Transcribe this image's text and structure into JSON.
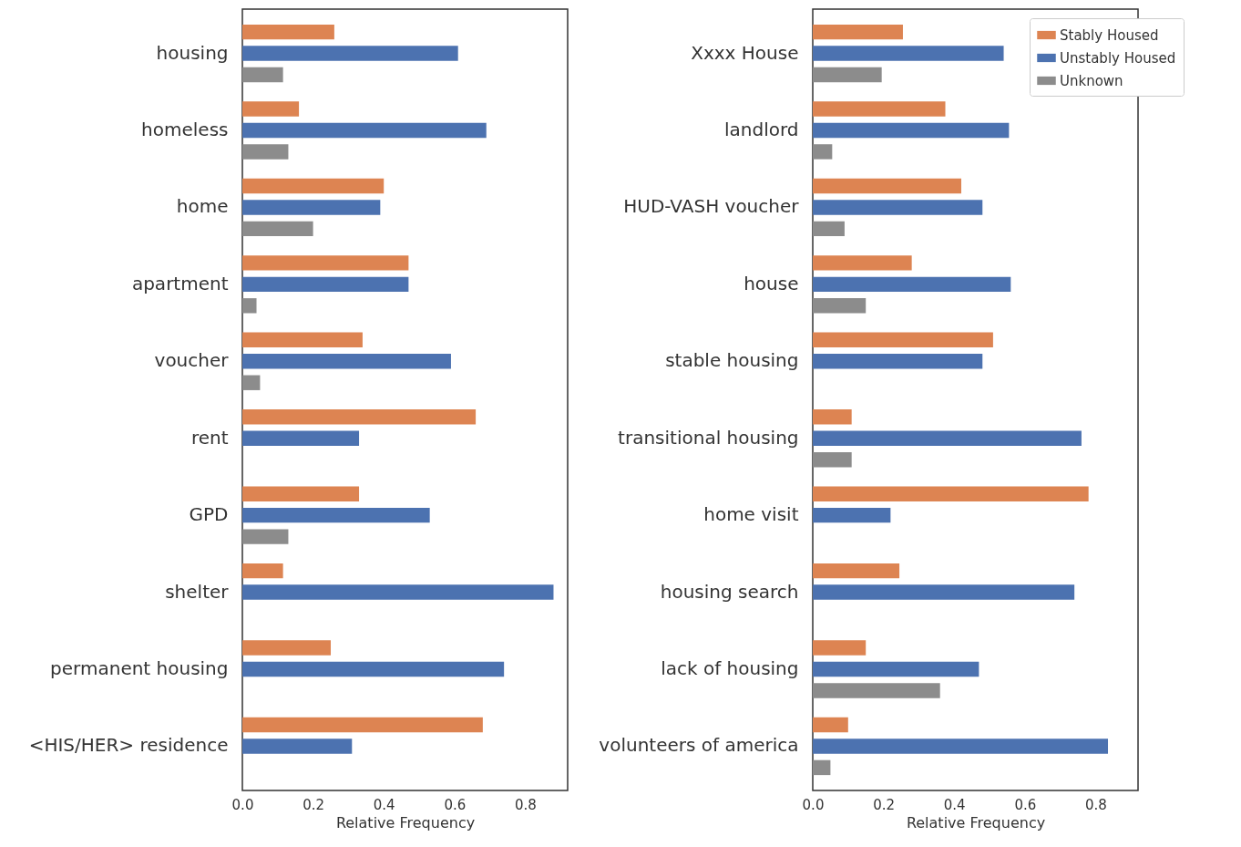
{
  "chart_data": [
    {
      "type": "bar",
      "orientation": "horizontal",
      "categories": [
        "housing",
        "homeless",
        "home",
        "apartment",
        "voucher",
        "rent",
        "GPD",
        "shelter",
        "permanent housing",
        "<HIS/HER> residence"
      ],
      "series": [
        {
          "color": "#dd8452",
          "values": [
            0.26,
            0.16,
            0.4,
            0.47,
            0.34,
            0.66,
            0.33,
            0.115,
            0.25,
            0.68
          ]
        },
        {
          "color": "#4c72b0",
          "values": [
            0.61,
            0.69,
            0.39,
            0.47,
            0.59,
            0.33,
            0.53,
            0.88,
            0.74,
            0.31
          ]
        },
        {
          "color": "#8c8c8c",
          "values": [
            0.115,
            0.13,
            0.2,
            0.04,
            0.05,
            null,
            0.13,
            null,
            null,
            null
          ]
        }
      ],
      "xlabel": "Relative Frequency",
      "xlim": [
        0,
        0.92
      ],
      "xticks": [
        {
          "value": 0,
          "label": "0.0"
        },
        0.2,
        0.4,
        0.6,
        0.8
      ],
      "grid": false,
      "legend": false
    },
    {
      "type": "bar",
      "orientation": "horizontal",
      "categories": [
        "Xxxx House",
        "landlord",
        "HUD-VASH voucher",
        "house",
        "stable housing",
        "transitional housing",
        "home visit",
        "housing search",
        "lack of housing",
        "volunteers of america"
      ],
      "series": [
        {
          "name": "Stably Housed",
          "color": "#dd8452",
          "values": [
            0.255,
            0.375,
            0.42,
            0.28,
            0.51,
            0.11,
            0.78,
            0.245,
            0.15,
            0.1
          ]
        },
        {
          "name": "Unstably Housed",
          "color": "#4c72b0",
          "values": [
            0.54,
            0.555,
            0.48,
            0.56,
            0.48,
            0.76,
            0.22,
            0.74,
            0.47,
            0.835
          ]
        },
        {
          "name": "Unknown",
          "color": "#8c8c8c",
          "values": [
            0.195,
            0.055,
            0.09,
            0.15,
            null,
            0.11,
            null,
            null,
            0.36,
            0.05
          ]
        }
      ],
      "xlabel": "Relative Frequency",
      "xlim": [
        0,
        0.92
      ],
      "xticks": [
        {
          "value": 0,
          "label": "0.0"
        },
        0.2,
        0.4,
        0.6,
        0.8
      ],
      "grid": false,
      "legend": "top right"
    }
  ]
}
